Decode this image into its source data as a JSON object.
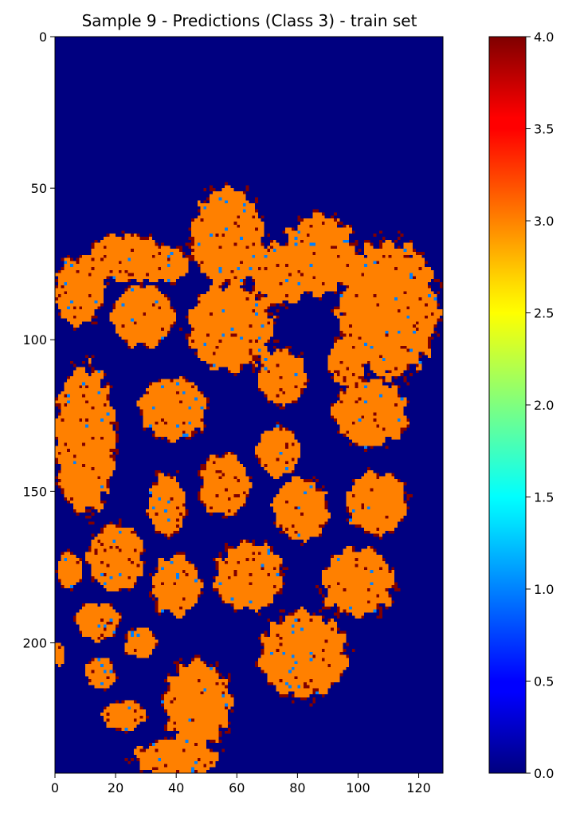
{
  "chart_data": {
    "type": "heatmap",
    "title": "Sample 9 - Predictions (Class 3) - train set",
    "xlabel": "",
    "ylabel": "",
    "xlim": [
      0,
      128
    ],
    "ylim": [
      243,
      0
    ],
    "x_ticks": [
      "0",
      "20",
      "40",
      "60",
      "80",
      "100",
      "120"
    ],
    "x_tick_values": [
      0,
      20,
      40,
      60,
      80,
      100,
      120
    ],
    "y_ticks": [
      "0",
      "50",
      "100",
      "150",
      "200"
    ],
    "y_tick_values": [
      0,
      50,
      100,
      150,
      200
    ],
    "colorbar": {
      "colormap": "jet",
      "range": [
        0.0,
        4.0
      ],
      "ticks": [
        "0.0",
        "0.5",
        "1.0",
        "1.5",
        "2.0",
        "2.5",
        "3.0",
        "3.5",
        "4.0"
      ],
      "tick_values": [
        0.0,
        0.5,
        1.0,
        1.5,
        2.0,
        2.5,
        3.0,
        3.5,
        4.0
      ]
    },
    "background_value": 0,
    "regions": [
      {
        "value": 3,
        "cx": 8,
        "cy": 84,
        "rx": 8,
        "ry": 11
      },
      {
        "value": 3,
        "cx": 23,
        "cy": 73,
        "rx": 12,
        "ry": 8
      },
      {
        "value": 3,
        "cx": 36,
        "cy": 75,
        "rx": 8,
        "ry": 6
      },
      {
        "value": 3,
        "cx": 29,
        "cy": 92,
        "rx": 10,
        "ry": 10
      },
      {
        "value": 3,
        "cx": 57,
        "cy": 66,
        "rx": 12,
        "ry": 16
      },
      {
        "value": 3,
        "cx": 58,
        "cy": 96,
        "rx": 14,
        "ry": 14
      },
      {
        "value": 3,
        "cx": 75,
        "cy": 78,
        "rx": 10,
        "ry": 10
      },
      {
        "value": 3,
        "cx": 87,
        "cy": 72,
        "rx": 12,
        "ry": 13
      },
      {
        "value": 3,
        "cx": 110,
        "cy": 90,
        "rx": 16,
        "ry": 22
      },
      {
        "value": 3,
        "cx": 96,
        "cy": 107,
        "rx": 6,
        "ry": 8
      },
      {
        "value": 3,
        "cx": 75,
        "cy": 112,
        "rx": 8,
        "ry": 9
      },
      {
        "value": 3,
        "cx": 10,
        "cy": 133,
        "rx": 10,
        "ry": 24
      },
      {
        "value": 3,
        "cx": 39,
        "cy": 123,
        "rx": 11,
        "ry": 10
      },
      {
        "value": 3,
        "cx": 74,
        "cy": 137,
        "rx": 7,
        "ry": 8
      },
      {
        "value": 3,
        "cx": 104,
        "cy": 124,
        "rx": 12,
        "ry": 11
      },
      {
        "value": 3,
        "cx": 56,
        "cy": 148,
        "rx": 8,
        "ry": 10
      },
      {
        "value": 3,
        "cx": 37,
        "cy": 154,
        "rx": 6,
        "ry": 10
      },
      {
        "value": 3,
        "cx": 81,
        "cy": 156,
        "rx": 9,
        "ry": 10
      },
      {
        "value": 3,
        "cx": 106,
        "cy": 154,
        "rx": 10,
        "ry": 10
      },
      {
        "value": 3,
        "cx": 20,
        "cy": 172,
        "rx": 9,
        "ry": 11
      },
      {
        "value": 3,
        "cx": 5,
        "cy": 176,
        "rx": 4,
        "ry": 6
      },
      {
        "value": 3,
        "cx": 40,
        "cy": 181,
        "rx": 8,
        "ry": 10
      },
      {
        "value": 3,
        "cx": 64,
        "cy": 178,
        "rx": 11,
        "ry": 11
      },
      {
        "value": 3,
        "cx": 100,
        "cy": 180,
        "rx": 12,
        "ry": 11
      },
      {
        "value": 3,
        "cx": 14,
        "cy": 193,
        "rx": 7,
        "ry": 6
      },
      {
        "value": 3,
        "cx": 28,
        "cy": 200,
        "rx": 5,
        "ry": 5
      },
      {
        "value": 3,
        "cx": 82,
        "cy": 204,
        "rx": 14,
        "ry": 14
      },
      {
        "value": 3,
        "cx": 15,
        "cy": 210,
        "rx": 5,
        "ry": 5
      },
      {
        "value": 3,
        "cx": 47,
        "cy": 220,
        "rx": 11,
        "ry": 14
      },
      {
        "value": 3,
        "cx": 23,
        "cy": 224,
        "rx": 7,
        "ry": 5
      },
      {
        "value": 3,
        "cx": 40,
        "cy": 238,
        "rx": 14,
        "ry": 6
      },
      {
        "value": 3,
        "cx": 1,
        "cy": 204,
        "rx": 2,
        "ry": 4
      }
    ],
    "boundary_value": 4,
    "speckle_value": 1
  }
}
